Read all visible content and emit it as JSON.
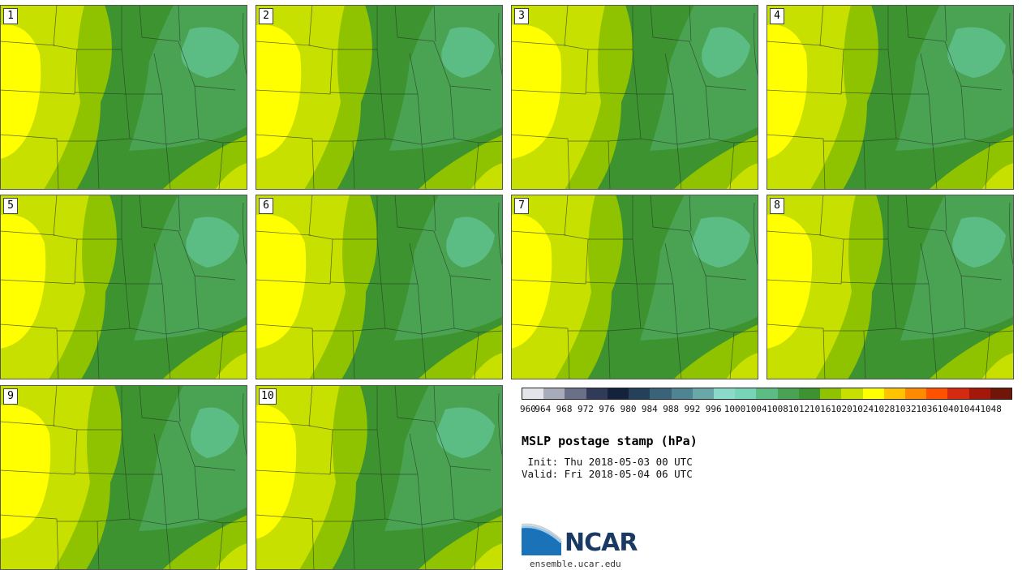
{
  "panels": [
    {
      "number": "1"
    },
    {
      "number": "2"
    },
    {
      "number": "3"
    },
    {
      "number": "4"
    },
    {
      "number": "5"
    },
    {
      "number": "6"
    },
    {
      "number": "7"
    },
    {
      "number": "8"
    },
    {
      "number": "9"
    },
    {
      "number": "10"
    }
  ],
  "colorbar": {
    "labels": [
      "960",
      "964",
      "968",
      "972",
      "976",
      "980",
      "984",
      "988",
      "992",
      "996",
      "1000",
      "1004",
      "1008",
      "1012",
      "1016",
      "1020",
      "1024",
      "1028",
      "1032",
      "1036",
      "1040",
      "1044",
      "1048"
    ],
    "colors": [
      "#e3e5ea",
      "#a8abb9",
      "#6b7089",
      "#2f3b58",
      "#14223b",
      "#25405a",
      "#3a6379",
      "#4f8592",
      "#69a8a8",
      "#8ad9c9",
      "#78d4b6",
      "#5cbd84",
      "#4aa353",
      "#3d932f",
      "#8fc300",
      "#c8e000",
      "#ffff00",
      "#ffc300",
      "#ff8a00",
      "#ff5200",
      "#d32a10",
      "#a4180c",
      "#701508"
    ]
  },
  "title": "MSLP postage stamp (hPa)",
  "init": " Init: Thu 2018-05-03 00 UTC",
  "valid": "Valid: Fri 2018-05-04 06 UTC",
  "logo": {
    "text": "NCAR",
    "url": "ensemble.ucar.edu"
  }
}
